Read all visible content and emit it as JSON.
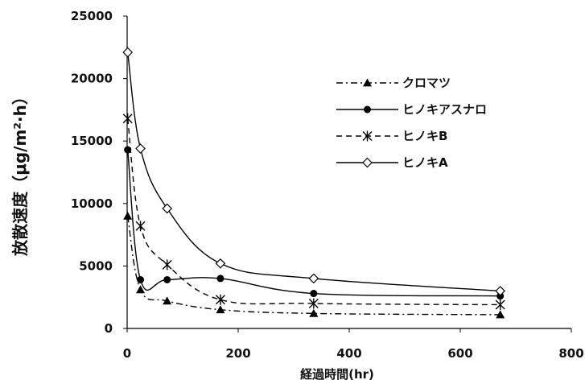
{
  "chart_data": {
    "type": "line",
    "title": "",
    "xlabel": "経過時間(hr)",
    "ylabel": "放散速度（μg/m²·h）",
    "xlim": [
      0,
      800
    ],
    "ylim": [
      0,
      25000
    ],
    "xticks": [
      0,
      200,
      400,
      600,
      800
    ],
    "yticks": [
      0,
      5000,
      10000,
      15000,
      20000,
      25000
    ],
    "grid": false,
    "legend_position": "top-right",
    "series": [
      {
        "name": "クロマツ",
        "marker": "triangle",
        "line": "dash-dot",
        "x": [
          1,
          24,
          72,
          168,
          336,
          672
        ],
        "y": [
          9000,
          3100,
          2200,
          1500,
          1200,
          1100
        ]
      },
      {
        "name": "ヒノキアスナロ",
        "marker": "circle",
        "line": "solid",
        "x": [
          1,
          24,
          72,
          168,
          336,
          672
        ],
        "y": [
          14300,
          3900,
          3900,
          4000,
          2800,
          2600
        ]
      },
      {
        "name": "ヒノキB",
        "marker": "star",
        "line": "dashed",
        "x": [
          1,
          24,
          72,
          168,
          336,
          672
        ],
        "y": [
          16800,
          8200,
          5100,
          2300,
          2000,
          1900
        ]
      },
      {
        "name": "ヒノキA",
        "marker": "diamond",
        "line": "solid",
        "x": [
          1,
          24,
          72,
          168,
          336,
          672
        ],
        "y": [
          22100,
          14400,
          9600,
          5200,
          4000,
          3000
        ]
      }
    ]
  }
}
